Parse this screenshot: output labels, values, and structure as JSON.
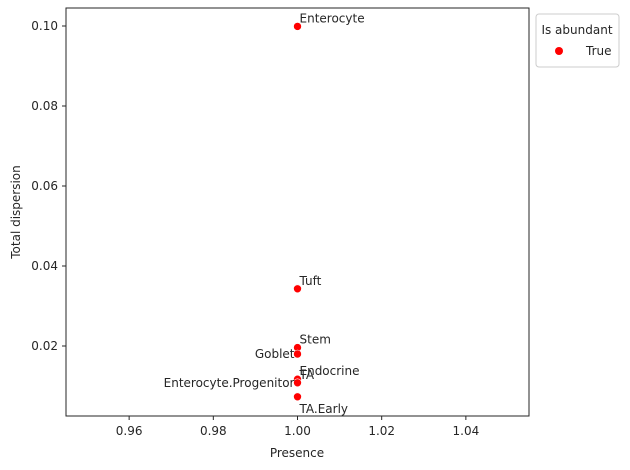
{
  "chart_data": {
    "type": "scatter",
    "xlabel": "Presence",
    "ylabel": "Total dispersion",
    "xlim": [
      0.945,
      1.055
    ],
    "ylim": [
      0.0025,
      0.1045
    ],
    "x_ticks": [
      0.96,
      0.98,
      1.0,
      1.02,
      1.04
    ],
    "x_tick_labels": [
      "0.96",
      "0.98",
      "1.00",
      "1.02",
      "1.04"
    ],
    "y_ticks": [
      0.02,
      0.04,
      0.06,
      0.08,
      0.1
    ],
    "y_tick_labels": [
      "0.02",
      "0.04",
      "0.06",
      "0.08",
      "0.10"
    ],
    "grid": false,
    "legend": {
      "title": "Is abundant",
      "placement": "outside-upper-right",
      "entries": [
        {
          "label": "True",
          "color": "#ff0000"
        }
      ]
    },
    "series": [
      {
        "name": "True",
        "color": "#ff0000",
        "points": [
          {
            "label": "Enterocyte",
            "x": 1.0,
            "y": 0.0999,
            "anchor": "upper-right"
          },
          {
            "label": "Tuft",
            "x": 1.0,
            "y": 0.0343,
            "anchor": "upper-right"
          },
          {
            "label": "Stem",
            "x": 1.0,
            "y": 0.0196,
            "anchor": "upper-right"
          },
          {
            "label": "Goblet",
            "x": 1.0,
            "y": 0.018,
            "anchor": "left"
          },
          {
            "label": "TA",
            "x": 1.0,
            "y": 0.0108,
            "anchor": "upper-right"
          },
          {
            "label": "Endocrine",
            "x": 1.0,
            "y": 0.0117,
            "anchor": "upper-right"
          },
          {
            "label": "Enterocyte.Progenitor",
            "x": 1.0,
            "y": 0.0108,
            "anchor": "left"
          },
          {
            "label": "TA.Early",
            "x": 1.0,
            "y": 0.0073,
            "anchor": "lower-right"
          }
        ]
      }
    ]
  }
}
